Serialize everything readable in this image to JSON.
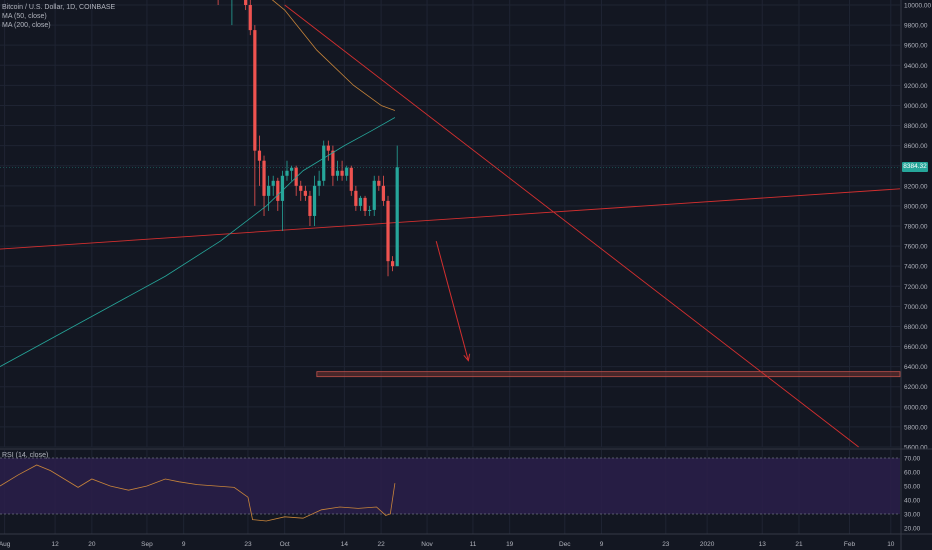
{
  "header": {
    "symbol_line": "Bitcoin / U.S. Dollar, 1D, COINBASE",
    "ma50_label": "MA (50, close)",
    "ma200_label": "MA (200, close)"
  },
  "rsi_panel": {
    "label": "RSI (14, close)"
  },
  "current_price_label": "8384.32",
  "colors": {
    "background": "#131722",
    "up": "#26a69a",
    "down": "#ef5350",
    "grid": "#1f2433",
    "trendline": "#d32f2f",
    "ma50": "#c9853a",
    "ma200": "#26a69a",
    "rsi_band": "#2a1f4a",
    "rsi_line": "#c9853a",
    "target_zone": "#8a3a32",
    "axis_text": "#b2b5be"
  },
  "chart_data": [
    {
      "type": "candlestick",
      "title": "Bitcoin / U.S. Dollar, 1D, COINBASE",
      "y_axis_side": "right",
      "ylim": [
        5600,
        10000
      ],
      "y_ticks": [
        10000,
        9800,
        9600,
        9400,
        9200,
        9000,
        8800,
        8600,
        8400,
        8200,
        8000,
        7800,
        7600,
        7400,
        7200,
        7000,
        6800,
        6600,
        6400,
        6200,
        6000,
        5800,
        5600
      ],
      "y_tick_labels": [
        "10000.00",
        "9800.00",
        "9600.00",
        "9400.00",
        "9200.00",
        "9000.00",
        "8800.00",
        "8600.00",
        "8400.00",
        "8200.00",
        "8000.00",
        "7800.00",
        "7600.00",
        "7400.00",
        "7200.00",
        "7000.00",
        "6800.00",
        "6600.00",
        "6400.00",
        "6200.00",
        "6000.00",
        "5800.00",
        "5600.00"
      ],
      "x_tick_labels": [
        "Aug",
        "12",
        "20",
        "Sep",
        "9",
        "23",
        "Oct",
        "14",
        "22",
        "Nov",
        "11",
        "19",
        "Dec",
        "9",
        "23",
        "2020",
        "13",
        "21",
        "Feb",
        "10"
      ],
      "x_tick_dates": [
        "2019-08-01",
        "2019-08-12",
        "2019-08-20",
        "2019-09-01",
        "2019-09-09",
        "2019-09-23",
        "2019-10-01",
        "2019-10-14",
        "2019-10-22",
        "2019-11-01",
        "2019-11-11",
        "2019-11-19",
        "2019-12-01",
        "2019-12-09",
        "2019-12-23",
        "2020-01-01",
        "2020-01-13",
        "2020-01-21",
        "2020-02-01",
        "2020-02-10"
      ],
      "x_range": [
        "2019-07-31",
        "2020-02-12"
      ],
      "last_price": 8384.32,
      "ohlc": [
        {
          "date": "2019-09-16",
          "o": 10400,
          "h": 10500,
          "l": 10000,
          "c": 10100
        },
        {
          "date": "2019-09-17",
          "o": 10100,
          "h": 10250,
          "l": 10050,
          "c": 10200
        },
        {
          "date": "2019-09-18",
          "o": 10200,
          "h": 10250,
          "l": 10080,
          "c": 10150
        },
        {
          "date": "2019-09-19",
          "o": 10150,
          "h": 10300,
          "l": 9800,
          "c": 10250
        },
        {
          "date": "2019-09-20",
          "o": 10250,
          "h": 10300,
          "l": 10100,
          "c": 10150
        },
        {
          "date": "2019-09-21",
          "o": 10150,
          "h": 10200,
          "l": 10050,
          "c": 10100
        },
        {
          "date": "2019-09-22",
          "o": 10100,
          "h": 10150,
          "l": 9950,
          "c": 10000
        },
        {
          "date": "2019-09-23",
          "o": 10000,
          "h": 10050,
          "l": 9700,
          "c": 9750
        },
        {
          "date": "2019-09-24",
          "o": 9750,
          "h": 9800,
          "l": 8000,
          "c": 8550
        },
        {
          "date": "2019-09-25",
          "o": 8550,
          "h": 8700,
          "l": 8200,
          "c": 8450
        },
        {
          "date": "2019-09-26",
          "o": 8450,
          "h": 8500,
          "l": 7900,
          "c": 8100
        },
        {
          "date": "2019-09-27",
          "o": 8100,
          "h": 8300,
          "l": 7950,
          "c": 8200
        },
        {
          "date": "2019-09-28",
          "o": 8200,
          "h": 8300,
          "l": 8100,
          "c": 8250
        },
        {
          "date": "2019-09-29",
          "o": 8250,
          "h": 8280,
          "l": 7950,
          "c": 8050
        },
        {
          "date": "2019-09-30",
          "o": 8050,
          "h": 8350,
          "l": 7750,
          "c": 8300
        },
        {
          "date": "2019-10-01",
          "o": 8300,
          "h": 8450,
          "l": 8250,
          "c": 8350
        },
        {
          "date": "2019-10-02",
          "o": 8350,
          "h": 8400,
          "l": 8250,
          "c": 8380
        },
        {
          "date": "2019-10-03",
          "o": 8380,
          "h": 8400,
          "l": 8100,
          "c": 8200
        },
        {
          "date": "2019-10-04",
          "o": 8200,
          "h": 8250,
          "l": 8050,
          "c": 8150
        },
        {
          "date": "2019-10-05",
          "o": 8150,
          "h": 8200,
          "l": 8050,
          "c": 8100
        },
        {
          "date": "2019-10-06",
          "o": 8100,
          "h": 8150,
          "l": 7800,
          "c": 7900
        },
        {
          "date": "2019-10-07",
          "o": 7900,
          "h": 8300,
          "l": 7800,
          "c": 8200
        },
        {
          "date": "2019-10-08",
          "o": 8200,
          "h": 8350,
          "l": 8100,
          "c": 8250
        },
        {
          "date": "2019-10-09",
          "o": 8250,
          "h": 8650,
          "l": 8200,
          "c": 8600
        },
        {
          "date": "2019-10-10",
          "o": 8600,
          "h": 8650,
          "l": 8450,
          "c": 8550
        },
        {
          "date": "2019-10-11",
          "o": 8550,
          "h": 8600,
          "l": 8200,
          "c": 8300
        },
        {
          "date": "2019-10-12",
          "o": 8300,
          "h": 8450,
          "l": 8250,
          "c": 8350
        },
        {
          "date": "2019-10-13",
          "o": 8350,
          "h": 8450,
          "l": 8250,
          "c": 8300
        },
        {
          "date": "2019-10-14",
          "o": 8300,
          "h": 8400,
          "l": 8250,
          "c": 8380
        },
        {
          "date": "2019-10-15",
          "o": 8380,
          "h": 8400,
          "l": 8100,
          "c": 8150
        },
        {
          "date": "2019-10-16",
          "o": 8150,
          "h": 8200,
          "l": 7950,
          "c": 8000
        },
        {
          "date": "2019-10-17",
          "o": 8000,
          "h": 8100,
          "l": 7950,
          "c": 8080
        },
        {
          "date": "2019-10-18",
          "o": 8080,
          "h": 8100,
          "l": 7900,
          "c": 7950
        },
        {
          "date": "2019-10-19",
          "o": 7950,
          "h": 8000,
          "l": 7900,
          "c": 7960
        },
        {
          "date": "2019-10-20",
          "o": 7960,
          "h": 8300,
          "l": 7900,
          "c": 8250
        },
        {
          "date": "2019-10-21",
          "o": 8250,
          "h": 8300,
          "l": 8150,
          "c": 8200
        },
        {
          "date": "2019-10-22",
          "o": 8200,
          "h": 8300,
          "l": 8000,
          "c": 8050
        },
        {
          "date": "2019-10-23",
          "o": 8050,
          "h": 8100,
          "l": 7300,
          "c": 7450
        },
        {
          "date": "2019-10-24",
          "o": 7450,
          "h": 7500,
          "l": 7350,
          "c": 7400
        },
        {
          "date": "2019-10-25",
          "o": 7400,
          "h": 8600,
          "l": 7400,
          "c": 8384.32
        }
      ],
      "ma50": [
        {
          "date": "2019-09-16",
          "v": 10450
        },
        {
          "date": "2019-09-23",
          "v": 10250
        },
        {
          "date": "2019-10-01",
          "v": 9950
        },
        {
          "date": "2019-10-08",
          "v": 9550
        },
        {
          "date": "2019-10-16",
          "v": 9200
        },
        {
          "date": "2019-10-22",
          "v": 9000
        },
        {
          "date": "2019-10-25",
          "v": 8950
        }
      ],
      "ma200": [
        {
          "date": "2019-07-31",
          "v": 6400
        },
        {
          "date": "2019-08-12",
          "v": 6700
        },
        {
          "date": "2019-08-24",
          "v": 7000
        },
        {
          "date": "2019-09-05",
          "v": 7300
        },
        {
          "date": "2019-09-17",
          "v": 7650
        },
        {
          "date": "2019-09-27",
          "v": 8000
        },
        {
          "date": "2019-10-05",
          "v": 8350
        },
        {
          "date": "2019-10-14",
          "v": 8600
        },
        {
          "date": "2019-10-20",
          "v": 8750
        },
        {
          "date": "2019-10-25",
          "v": 8880
        }
      ],
      "trendlines": [
        {
          "name": "rising",
          "from": {
            "date": "2019-07-31",
            "v": 7570
          },
          "to": {
            "date": "2020-02-12",
            "v": 8170
          }
        },
        {
          "name": "falling",
          "from": {
            "date": "2019-10-01",
            "v": 10000
          },
          "to": {
            "date": "2020-02-03",
            "v": 5600
          }
        }
      ],
      "target_zone": {
        "from": "2019-10-08",
        "to": "2020-02-12",
        "low": 6300,
        "high": 6350
      },
      "arrow": {
        "from": {
          "date": "2019-11-03",
          "v": 7650
        },
        "to": {
          "date": "2019-11-10",
          "v": 6460
        }
      }
    },
    {
      "type": "line",
      "title": "RSI (14, close)",
      "ylim": [
        20,
        70
      ],
      "y_ticks": [
        70,
        60,
        50,
        40,
        30,
        20
      ],
      "y_tick_labels": [
        "70.00",
        "60.00",
        "50.00",
        "40.00",
        "30.00",
        "20.00"
      ],
      "bands": [
        70,
        30
      ],
      "series": [
        {
          "values": [
            {
              "date": "2019-07-31",
              "v": 50
            },
            {
              "date": "2019-08-04",
              "v": 58
            },
            {
              "date": "2019-08-08",
              "v": 65
            },
            {
              "date": "2019-08-11",
              "v": 61
            },
            {
              "date": "2019-08-14",
              "v": 55
            },
            {
              "date": "2019-08-17",
              "v": 49
            },
            {
              "date": "2019-08-20",
              "v": 55
            },
            {
              "date": "2019-08-24",
              "v": 50
            },
            {
              "date": "2019-08-28",
              "v": 47
            },
            {
              "date": "2019-09-01",
              "v": 50
            },
            {
              "date": "2019-09-05",
              "v": 55
            },
            {
              "date": "2019-09-08",
              "v": 53
            },
            {
              "date": "2019-09-12",
              "v": 51
            },
            {
              "date": "2019-09-16",
              "v": 50
            },
            {
              "date": "2019-09-20",
              "v": 49
            },
            {
              "date": "2019-09-23",
              "v": 42
            },
            {
              "date": "2019-09-24",
              "v": 26
            },
            {
              "date": "2019-09-27",
              "v": 25
            },
            {
              "date": "2019-10-01",
              "v": 28
            },
            {
              "date": "2019-10-05",
              "v": 27
            },
            {
              "date": "2019-10-09",
              "v": 33
            },
            {
              "date": "2019-10-13",
              "v": 35
            },
            {
              "date": "2019-10-17",
              "v": 34
            },
            {
              "date": "2019-10-21",
              "v": 35
            },
            {
              "date": "2019-10-23",
              "v": 29
            },
            {
              "date": "2019-10-24",
              "v": 30
            },
            {
              "date": "2019-10-25",
              "v": 52
            }
          ]
        }
      ]
    }
  ]
}
